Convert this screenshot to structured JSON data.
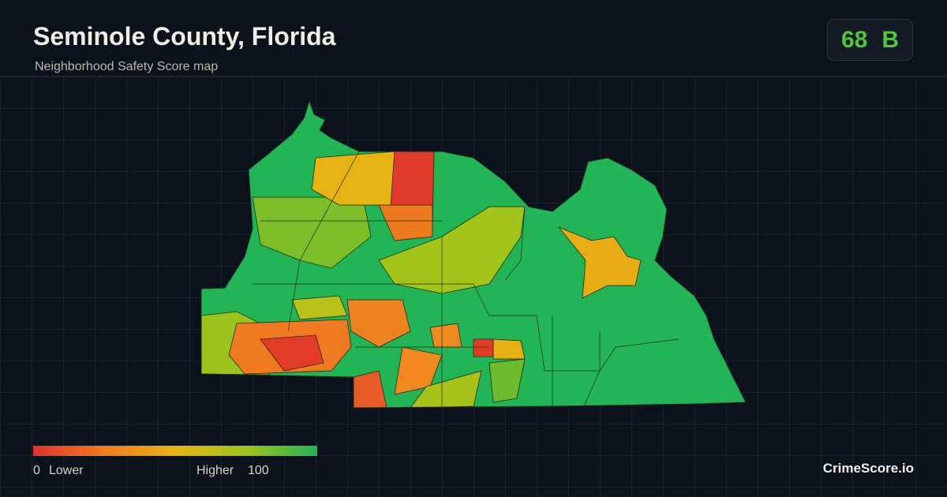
{
  "header": {
    "title": "Seminole County, Florida",
    "subtitle": "Neighborhood Safety Score map"
  },
  "score": {
    "value": 68,
    "grade": "B"
  },
  "legend": {
    "min": 0,
    "min_label": "Lower",
    "max_label": "Higher",
    "max": 100
  },
  "brand": "CrimeScore.io"
}
